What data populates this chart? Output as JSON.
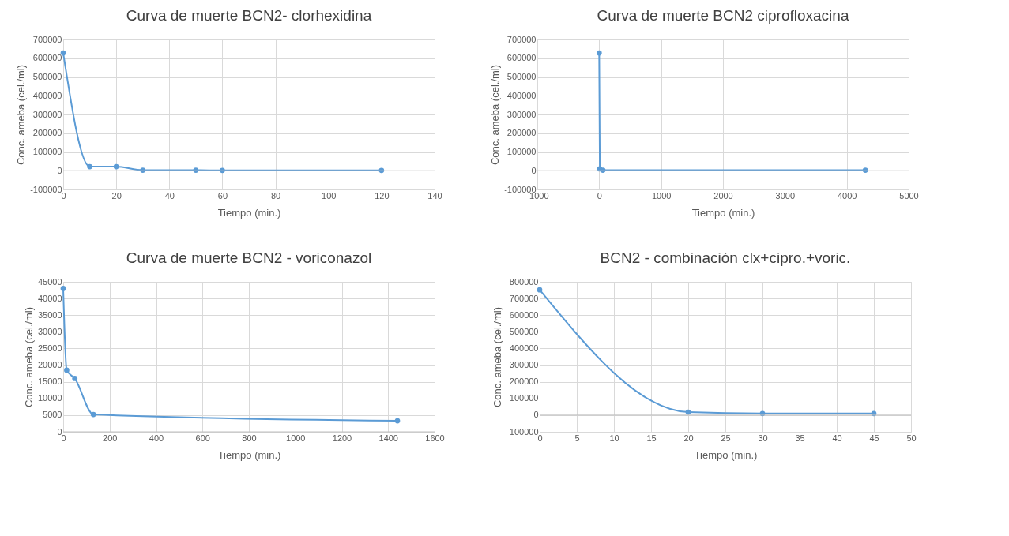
{
  "chart_data": [
    {
      "type": "line",
      "title": "Curva de muerte BCN2- clorhexidina",
      "xlabel": "Tiempo (min.)",
      "ylabel": "Conc. ameba (cel./ml)",
      "x": [
        0,
        10,
        20,
        30,
        50,
        60,
        120
      ],
      "series": [
        {
          "color": "#5b9bd5",
          "values": [
            628000,
            22000,
            22000,
            3000,
            3000,
            2000,
            2000
          ]
        }
      ],
      "xlim": [
        0,
        140
      ],
      "xticks": [
        0,
        20,
        40,
        60,
        80,
        100,
        120,
        140
      ],
      "ylim": [
        -100000,
        700000
      ],
      "yticks": [
        -100000,
        0,
        100000,
        200000,
        300000,
        400000,
        500000,
        600000,
        700000
      ],
      "grid": true,
      "marker": "circle",
      "line_style": "solid"
    },
    {
      "type": "line",
      "title": "Curva de muerte BCN2 ciprofloxacina",
      "xlabel": "Tiempo (min.)",
      "ylabel": "Conc. ameba (cel./ml)",
      "x": [
        0,
        10,
        60,
        4300
      ],
      "series": [
        {
          "color": "#5b9bd5",
          "values": [
            628000,
            10000,
            3000,
            3000
          ]
        }
      ],
      "xlim": [
        -1000,
        5000
      ],
      "xticks": [
        -1000,
        0,
        1000,
        2000,
        3000,
        4000,
        5000
      ],
      "ylim": [
        -100000,
        700000
      ],
      "yticks": [
        -100000,
        0,
        100000,
        200000,
        300000,
        400000,
        500000,
        600000,
        700000
      ],
      "grid": true,
      "marker": "circle",
      "line_style": "solid"
    },
    {
      "type": "line",
      "title": "Curva de muerte BCN2 - voriconazol",
      "xlabel": "Tiempo (min.)",
      "ylabel": "Conc. ameba (cel./ml)",
      "x": [
        0,
        15,
        50,
        130,
        1440
      ],
      "series": [
        {
          "color": "#5b9bd5",
          "values": [
            43000,
            18500,
            16000,
            5200,
            3300
          ]
        }
      ],
      "xlim": [
        0,
        1600
      ],
      "xticks": [
        0,
        200,
        400,
        600,
        800,
        1000,
        1200,
        1400,
        1600
      ],
      "ylim": [
        0,
        45000
      ],
      "yticks": [
        0,
        5000,
        10000,
        15000,
        20000,
        25000,
        30000,
        35000,
        40000,
        45000
      ],
      "grid": true,
      "marker": "circle",
      "line_style": "solid"
    },
    {
      "type": "line",
      "title": "BCN2 - combinación clx+cipro.+voric.",
      "xlabel": "Tiempo (min.)",
      "ylabel": "Conc. ameba (cel./ml)",
      "x": [
        0,
        20,
        30,
        45
      ],
      "series": [
        {
          "color": "#5b9bd5",
          "values": [
            752000,
            18000,
            10000,
            10000
          ]
        }
      ],
      "xlim": [
        0,
        50
      ],
      "xticks": [
        0,
        5,
        10,
        15,
        20,
        25,
        30,
        35,
        40,
        45,
        50
      ],
      "ylim": [
        -100000,
        800000
      ],
      "yticks": [
        -100000,
        0,
        100000,
        200000,
        300000,
        400000,
        500000,
        600000,
        700000,
        800000
      ],
      "grid": true,
      "marker": "circle",
      "line_style": "solid"
    }
  ]
}
